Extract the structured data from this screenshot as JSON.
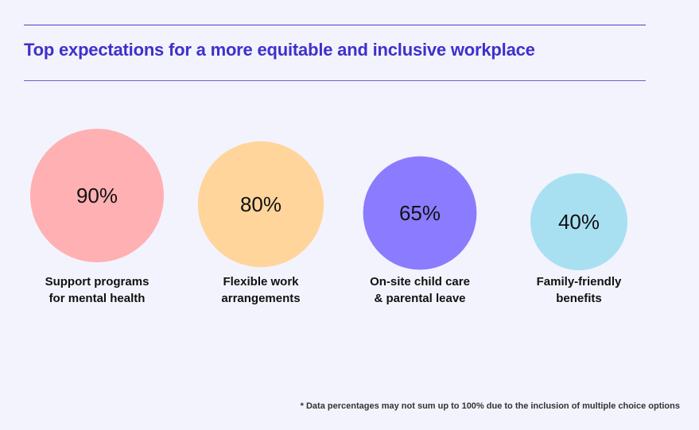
{
  "chart_data": {
    "type": "bubble",
    "title": "Top expectations for a more equitable and inclusive workplace",
    "categories": [
      "Support programs for mental health",
      "Flexible work arrangements",
      "On-site child care & parental leave",
      "Family-friendly benefits"
    ],
    "label_lines": [
      [
        "Support programs",
        "for mental health"
      ],
      [
        "Flexible work",
        "arrangements"
      ],
      [
        "On-site child care",
        "& parental leave"
      ],
      [
        "Family-friendly",
        "benefits"
      ]
    ],
    "values": [
      90,
      80,
      65,
      40
    ],
    "value_labels": [
      "90%",
      "80%",
      "65%",
      "40%"
    ],
    "colors": [
      "#ffb0b3",
      "#ffd59b",
      "#8b7bff",
      "#a8e0f2"
    ],
    "footnote": "* Data percentages may not sum up to 100% due to the inclusion of multiple choice options"
  }
}
